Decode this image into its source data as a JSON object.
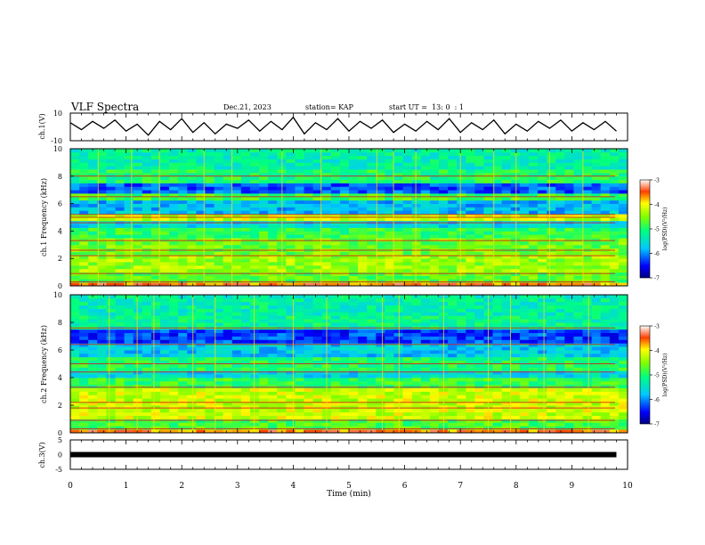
{
  "header": {
    "title": "VLF Spectra",
    "date": "Dec.21, 2023",
    "station": "station= KAP",
    "start": "start UT =  13: 0  : 1"
  },
  "chart_data": [
    {
      "type": "line",
      "panel": "ch1-waveform",
      "ylabel": "ch.1(V)",
      "xlim": [
        0,
        10
      ],
      "ylim": [
        -10,
        10
      ],
      "yticks": [
        10,
        -10
      ],
      "x": [
        0.0,
        0.2,
        0.4,
        0.6,
        0.8,
        1.0,
        1.2,
        1.4,
        1.6,
        1.8,
        2.0,
        2.2,
        2.4,
        2.6,
        2.8,
        3.0,
        3.2,
        3.4,
        3.6,
        3.8,
        4.0,
        4.2,
        4.4,
        4.6,
        4.8,
        5.0,
        5.2,
        5.4,
        5.6,
        5.8,
        6.0,
        6.2,
        6.4,
        6.6,
        6.8,
        7.0,
        7.2,
        7.4,
        7.6,
        7.8,
        8.0,
        8.2,
        8.4,
        8.6,
        8.8,
        9.0,
        9.2,
        9.4,
        9.6,
        9.8
      ],
      "values": [
        3,
        -2,
        4,
        -1,
        5,
        -3,
        2,
        -6,
        4,
        -2,
        6,
        -4,
        3,
        -5,
        2,
        -1,
        5,
        -3,
        4,
        -2,
        7,
        -5,
        3,
        -2,
        6,
        -3,
        4,
        -1,
        5,
        -4,
        2,
        -3,
        4,
        -2,
        6,
        -4,
        3,
        -2,
        5,
        -5,
        2,
        -3,
        4,
        -1,
        5,
        -3,
        3,
        -2,
        4,
        -3
      ]
    },
    {
      "type": "heatmap",
      "panel": "ch1-spectrogram",
      "ylabel": "ch.1 Frequency (kHz)",
      "xlim": [
        0,
        10
      ],
      "ylim": [
        0,
        10
      ],
      "yticks": [
        0,
        2,
        4,
        6,
        8,
        10
      ],
      "colorbar": {
        "label": "log(PSD)(V²/Hz)",
        "range": [
          -7,
          -3
        ],
        "ticks": [
          -3,
          -4,
          -5,
          -6,
          -7
        ]
      },
      "bands": [
        {
          "f_low": 0.0,
          "f_high": 0.2,
          "level": -3.6
        },
        {
          "f_low": 0.2,
          "f_high": 1.0,
          "level": -4.7
        },
        {
          "f_low": 1.0,
          "f_high": 2.2,
          "level": -4.4
        },
        {
          "f_low": 2.2,
          "f_high": 3.4,
          "level": -4.6
        },
        {
          "f_low": 3.4,
          "f_high": 4.2,
          "level": -4.9
        },
        {
          "f_low": 4.2,
          "f_high": 4.8,
          "level": -5.6
        },
        {
          "f_low": 4.8,
          "f_high": 5.3,
          "level": -4.2
        },
        {
          "f_low": 5.3,
          "f_high": 6.3,
          "level": -5.8
        },
        {
          "f_low": 6.3,
          "f_high": 6.7,
          "level": -4.8
        },
        {
          "f_low": 6.7,
          "f_high": 7.6,
          "level": -6.2
        },
        {
          "f_low": 7.6,
          "f_high": 8.5,
          "level": -5.0
        },
        {
          "f_low": 8.5,
          "f_high": 10.0,
          "level": -5.3
        }
      ],
      "lines_kHz": [
        0.3,
        0.9,
        2.2,
        2.6,
        3.3,
        4.6,
        5.0,
        5.2,
        6.5,
        8.0
      ],
      "spikes_min": [
        0.5,
        1.1,
        1.6,
        2.4,
        2.9,
        3.8,
        4.5,
        5.5,
        5.8,
        6.2,
        7.0,
        7.6,
        8.0,
        8.6,
        9.2
      ]
    },
    {
      "type": "heatmap",
      "panel": "ch2-spectrogram",
      "ylabel": "ch.2 Frequency (kHz)",
      "xlim": [
        0,
        10
      ],
      "ylim": [
        0,
        10
      ],
      "yticks": [
        0,
        2,
        4,
        6,
        8,
        10
      ],
      "colorbar": {
        "label": "log(PSD)(V²/Hz)",
        "range": [
          -7,
          -3
        ],
        "ticks": [
          -3,
          -4,
          -5,
          -6,
          -7
        ]
      },
      "bands": [
        {
          "f_low": 0.0,
          "f_high": 0.2,
          "level": -3.6
        },
        {
          "f_low": 0.2,
          "f_high": 1.0,
          "level": -4.8
        },
        {
          "f_low": 1.0,
          "f_high": 3.2,
          "level": -4.2
        },
        {
          "f_low": 3.2,
          "f_high": 4.0,
          "level": -4.9
        },
        {
          "f_low": 4.0,
          "f_high": 4.6,
          "level": -5.6
        },
        {
          "f_low": 4.6,
          "f_high": 5.4,
          "level": -5.0
        },
        {
          "f_low": 5.4,
          "f_high": 6.4,
          "level": -5.7
        },
        {
          "f_low": 6.4,
          "f_high": 7.4,
          "level": -6.3
        },
        {
          "f_low": 7.4,
          "f_high": 8.4,
          "level": -5.2
        },
        {
          "f_low": 8.4,
          "f_high": 10.0,
          "level": -5.3
        }
      ],
      "lines_kHz": [
        0.3,
        0.9,
        1.8,
        2.2,
        3.3,
        4.4,
        5.0,
        6.4,
        7.6
      ],
      "spikes_min": [
        0.7,
        1.2,
        1.5,
        2.2,
        2.6,
        3.3,
        4.0,
        4.6,
        5.6,
        5.9,
        6.7,
        7.5,
        7.9,
        8.5,
        9.3
      ]
    },
    {
      "type": "line",
      "panel": "ch3-voltage",
      "ylabel": "ch.3(V)",
      "xlim": [
        0,
        10
      ],
      "ylim": [
        -5,
        5
      ],
      "yticks": [
        5,
        0,
        -5
      ],
      "x": [
        0,
        9.8
      ],
      "values": [
        0,
        0
      ],
      "xlabel": "Time (min)",
      "xticks": [
        0,
        1,
        2,
        3,
        4,
        5,
        6,
        7,
        8,
        9,
        10
      ]
    }
  ]
}
